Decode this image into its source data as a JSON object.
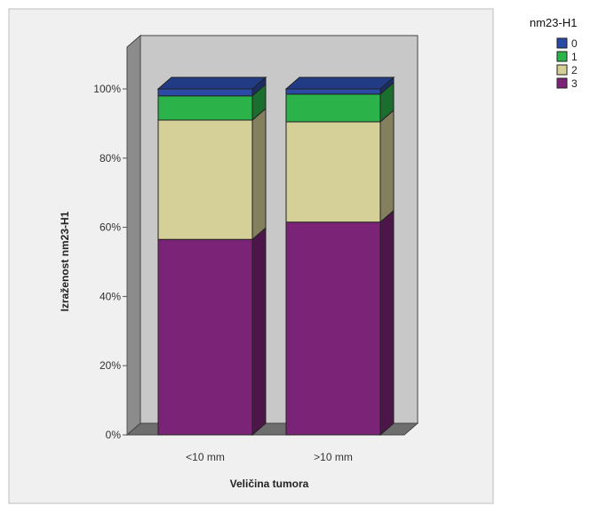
{
  "chart_data": {
    "type": "bar",
    "stacked": true,
    "stack_mode": "percent",
    "three_d": true,
    "categories": [
      "<10 mm",
      ">10 mm"
    ],
    "xlabel": "Veličina tumora",
    "ylabel": "Izraženost nm23-H1",
    "ylim": [
      0,
      100
    ],
    "y_ticks": [
      {
        "value": 0,
        "label": "0%"
      },
      {
        "value": 20,
        "label": "20%"
      },
      {
        "value": 40,
        "label": "40%"
      },
      {
        "value": 60,
        "label": "60%"
      },
      {
        "value": 80,
        "label": "80%"
      },
      {
        "value": 100,
        "label": "100%"
      }
    ],
    "series": [
      {
        "name": "3",
        "color": "#7b2477",
        "values": [
          56.5,
          61.5
        ]
      },
      {
        "name": "2",
        "color": "#d5cf98",
        "values": [
          34.5,
          29.0
        ]
      },
      {
        "name": "1",
        "color": "#2bb34a",
        "values": [
          7.0,
          8.0
        ]
      },
      {
        "name": "0",
        "color": "#2b4aa6",
        "values": [
          2.0,
          1.5
        ]
      }
    ],
    "legend": {
      "title": "nm23-H1",
      "placement": "top-right",
      "order": [
        "0",
        "1",
        "2",
        "3"
      ]
    },
    "grid": false,
    "wall_color": "#c8c8c8",
    "side_wall_color": "#8c8c8c",
    "floor_color": "#6e6e6e"
  }
}
